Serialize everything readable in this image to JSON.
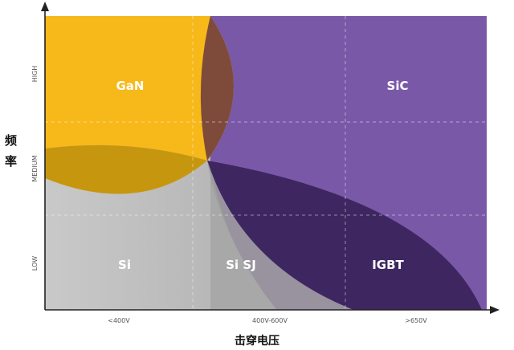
{
  "ylabel_chars": [
    "频",
    "率"
  ],
  "xlabel": "击穿电压",
  "y_ticks": [
    "HIGH",
    "MEDIUM",
    "LOW"
  ],
  "x_ticks": [
    "<400V",
    "400V-600V",
    ">650V"
  ],
  "regions": {
    "gan": "GaN",
    "sic": "SiC",
    "si": "Si",
    "si_sj": "Si SJ",
    "igbt": "IGBT"
  },
  "colors": {
    "gan": "#F7B81A",
    "sic": "#7A58A8",
    "igbt": "#3E2760",
    "si_light": "#C9C9C9",
    "si_dark": "#8A8A8A",
    "overlap_gan_sic": "#7E4B3A",
    "overlap_gan_si": "#C6960F",
    "axis": "#222222"
  }
}
